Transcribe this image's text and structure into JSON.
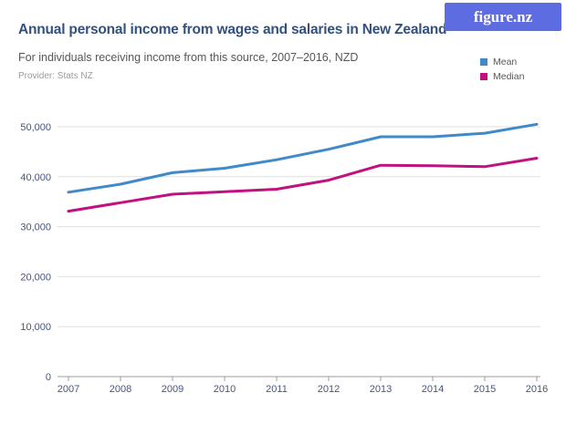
{
  "logo": {
    "text": "figure.nz",
    "bg_color": "#5e6ce2",
    "text_color": "#ffffff"
  },
  "header": {
    "title": "Annual personal income from wages and salaries in New Zealand",
    "subtitle": "For individuals receiving income from this source, 2007–2016, NZD",
    "provider": "Provider: Stats NZ"
  },
  "legend": {
    "items": [
      {
        "label": "Mean",
        "color": "#3f8aca"
      },
      {
        "label": "Median",
        "color": "#c1107f"
      }
    ]
  },
  "colors": {
    "title_text": "#33517d",
    "subtitle_text": "#54575c",
    "provider_text": "#9b9b9b",
    "axis_label": "#46557c",
    "gridline": "#e0e0e0",
    "axis_line": "#9e9e9e"
  },
  "chart_data": {
    "type": "line",
    "title": "Annual personal income from wages and salaries in New Zealand",
    "subtitle": "For individuals receiving income from this source, 2007–2016, NZD",
    "provider": "Provider: Stats NZ",
    "x": [
      2007,
      2008,
      2009,
      2010,
      2011,
      2012,
      2013,
      2014,
      2015,
      2016
    ],
    "series": [
      {
        "name": "Mean",
        "color": "#3f8aca",
        "values": [
          36900,
          38500,
          40800,
          41700,
          43400,
          45500,
          48000,
          48000,
          48700,
          50500
        ]
      },
      {
        "name": "Median",
        "color": "#c1107f",
        "values": [
          33100,
          34800,
          36500,
          37000,
          37500,
          39300,
          42300,
          42200,
          42000,
          43700
        ]
      }
    ],
    "ylim": [
      0,
      50000
    ],
    "yticks": [
      0,
      10000,
      20000,
      30000,
      40000,
      50000
    ],
    "ytick_labels": [
      "0",
      "10,000",
      "20,000",
      "30,000",
      "40,000",
      "50,000"
    ],
    "grid": "horizontal",
    "legend_position": "top-right"
  }
}
